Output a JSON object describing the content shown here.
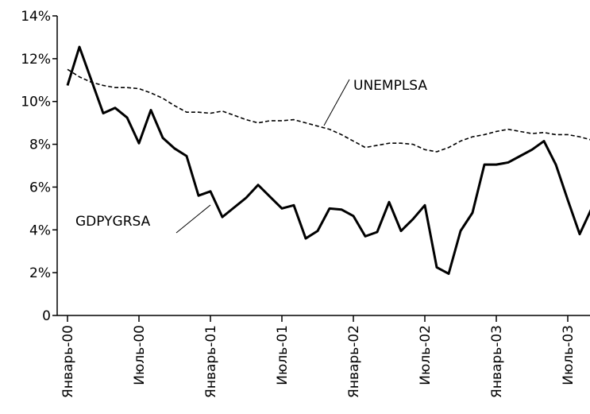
{
  "chart_data": {
    "type": "line",
    "categories": [
      "Январь-00",
      null,
      null,
      null,
      null,
      null,
      "Июль-00",
      null,
      null,
      null,
      null,
      null,
      "Январь-01",
      null,
      null,
      null,
      null,
      null,
      "Июль-01",
      null,
      null,
      null,
      null,
      null,
      "Январь-02",
      null,
      null,
      null,
      null,
      null,
      "Июль-02",
      null,
      null,
      null,
      null,
      null,
      "Январь-03",
      null,
      null,
      null,
      null,
      null,
      "Июль-03",
      null,
      null
    ],
    "series": [
      {
        "name": "GDPYGRSA",
        "color": "#000000",
        "style": "solid",
        "values": [
          10.75,
          12.55,
          11.0,
          9.45,
          9.7,
          9.25,
          8.05,
          9.6,
          8.3,
          7.8,
          7.45,
          5.6,
          5.8,
          4.6,
          5.05,
          5.5,
          6.1,
          5.55,
          5.0,
          5.15,
          3.6,
          3.95,
          5.0,
          4.95,
          4.65,
          3.7,
          3.9,
          5.3,
          3.95,
          4.5,
          5.15,
          2.25,
          1.95,
          3.95,
          4.8,
          7.05,
          7.05,
          7.15,
          7.45,
          7.75,
          8.15,
          7.05,
          5.4,
          3.8,
          5.0
        ]
      },
      {
        "name": "UNEMPLSA",
        "color": "#000000",
        "style": "dashed",
        "values": [
          11.5,
          11.15,
          10.9,
          10.75,
          10.65,
          10.65,
          10.6,
          10.4,
          10.15,
          9.8,
          9.5,
          9.5,
          9.45,
          9.55,
          9.35,
          9.15,
          9.0,
          9.1,
          9.1,
          9.15,
          9.0,
          8.85,
          8.7,
          8.45,
          8.15,
          7.85,
          7.95,
          8.05,
          8.05,
          8.0,
          7.75,
          7.65,
          7.85,
          8.15,
          8.35,
          8.45,
          8.6,
          8.7,
          8.6,
          8.5,
          8.55,
          8.45,
          8.45,
          8.35,
          8.2
        ]
      }
    ],
    "annotations": [
      "GDPYGRSA",
      "UNEMPLSA"
    ],
    "ylim": [
      0,
      14
    ],
    "yticks": [
      0,
      {
        "value": 2,
        "label": "2%"
      },
      {
        "value": 4,
        "label": "4%"
      },
      {
        "value": 6,
        "label": "6%"
      },
      {
        "value": 8,
        "label": "8%"
      },
      {
        "value": 10,
        "label": "10%"
      },
      {
        "value": 12,
        "label": "12%"
      },
      {
        "value": 14,
        "label": "14%"
      }
    ],
    "grid": false
  }
}
